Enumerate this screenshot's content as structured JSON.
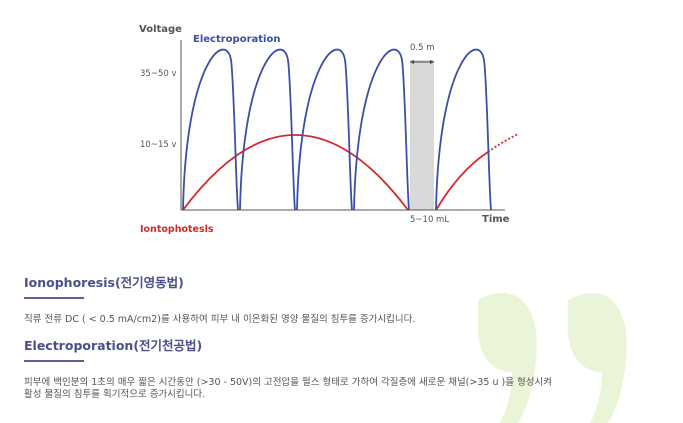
{
  "diagram": {
    "y_axis_title": "Voltage",
    "x_axis_title": "Time",
    "y_tick_high": "35~50 v",
    "y_tick_low": "10~15 v",
    "electroporation_label": "Electroporation",
    "iontophoresis_label": "Iontophotesls",
    "pulse_width_label": "0.5 m",
    "gap_label": "5~10 mL",
    "colors": {
      "electroporation": "#3a4fa8",
      "iontophoresis": "#d62a2a",
      "gap_fill": "#d9d9d9",
      "axis": "#555555",
      "quote_mark": "#eaf4d6"
    }
  },
  "sections": [
    {
      "heading": "Ionophoresis(전기영동법)",
      "lines": [
        "직류 전류 DC ( < 0.5 mA/cm2)를 사용하여 피부 내 이온화된 영양 물질의 침투를 증가시킵니다."
      ]
    },
    {
      "heading": "Electroporation(전기천공법)",
      "lines": [
        "피부에 백인분의 1초의 매우 짧은 시간동안 (>30 - 50V)의 고전압을 펄스 형태로 가하여 각질층에 새로운 채널(>35 u )을 형성시켜",
        "활성 물질의 침투를 획기적으로 증가시킵니다."
      ]
    }
  ]
}
